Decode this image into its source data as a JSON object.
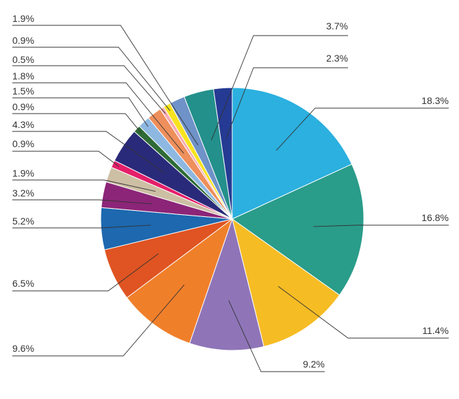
{
  "chart_data": {
    "type": "pie",
    "title": "",
    "start": "12 o'clock, clockwise",
    "slices": [
      {
        "label": "18.3%",
        "value": 18.3,
        "color": "#2BB0DF"
      },
      {
        "label": "16.8%",
        "value": 16.8,
        "color": "#2A9C8A"
      },
      {
        "label": "11.4%",
        "value": 11.4,
        "color": "#F6BC24"
      },
      {
        "label": "9.2%",
        "value": 9.2,
        "color": "#8F75B8"
      },
      {
        "label": "9.6%",
        "value": 9.6,
        "color": "#F07F2A"
      },
      {
        "label": "6.5%",
        "value": 6.5,
        "color": "#DF5422"
      },
      {
        "label": "5.2%",
        "value": 5.2,
        "color": "#1D68AF"
      },
      {
        "label": "3.2%",
        "value": 3.2,
        "color": "#8C2578"
      },
      {
        "label": "1.9%",
        "value": 1.9,
        "color": "#CDBFA4"
      },
      {
        "label": "0.9%",
        "value": 0.9,
        "color": "#E51F6A"
      },
      {
        "label": "4.3%",
        "value": 4.3,
        "color": "#2A2A7A"
      },
      {
        "label": "0.9%",
        "value": 0.9,
        "color": "#2E6B35"
      },
      {
        "label": "1.5%",
        "value": 1.5,
        "color": "#8EB8E2"
      },
      {
        "label": "1.8%",
        "value": 1.8,
        "color": "#EE8F5C"
      },
      {
        "label": "0.5%",
        "value": 0.5,
        "color": "#F5A9B2"
      },
      {
        "label": "0.9%",
        "value": 0.9,
        "color": "#F7E31F"
      },
      {
        "label": "1.9%",
        "value": 1.9,
        "color": "#6F92C8"
      },
      {
        "label": "3.7%",
        "value": 3.7,
        "color": "#23908C"
      },
      {
        "label": "2.3%",
        "value": 2.3,
        "color": "#253A93"
      }
    ]
  }
}
